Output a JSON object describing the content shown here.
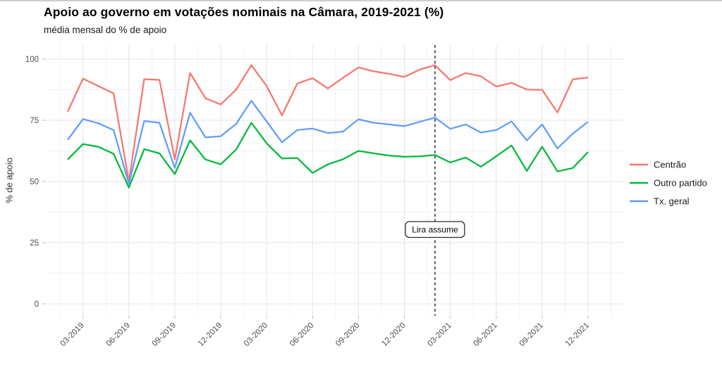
{
  "page": {
    "title": "Apoio ao governo em votações nominais na Câmara, 2019-2021 (%)",
    "subtitle": "média mensal do % de apoio"
  },
  "chart_data": {
    "type": "line",
    "title": "Apoio ao governo em votações nominais na Câmara, 2019-2021 (%)",
    "subtitle": "média mensal do % de apoio",
    "xlabel": "",
    "ylabel": "% de apoio",
    "grid": true,
    "legend_position": "right",
    "ylim": [
      0,
      100
    ],
    "y_ticks": [
      0,
      25,
      50,
      75,
      100
    ],
    "x_tick_labels": [
      "03-2019",
      "06-2019",
      "09-2019",
      "12-2019",
      "03-2020",
      "06-2020",
      "09-2020",
      "12-2020",
      "03-2021",
      "06-2021",
      "09-2021",
      "12-2021"
    ],
    "x": [
      "02-2019",
      "03-2019",
      "04-2019",
      "05-2019",
      "06-2019",
      "07-2019",
      "08-2019",
      "09-2019",
      "10-2019",
      "11-2019",
      "12-2019",
      "01-2020",
      "02-2020",
      "03-2020",
      "04-2020",
      "05-2020",
      "06-2020",
      "07-2020",
      "08-2020",
      "09-2020",
      "10-2020",
      "11-2020",
      "12-2020",
      "01-2021",
      "02-2021",
      "03-2021",
      "04-2021",
      "05-2021",
      "06-2021",
      "07-2021",
      "08-2021",
      "09-2021",
      "10-2021",
      "11-2021",
      "12-2021"
    ],
    "series": [
      {
        "name": "Centrão",
        "color": "#F8766D",
        "values": [
          78.5,
          92,
          89,
          86,
          50,
          91.8,
          91.5,
          59,
          94.3,
          84,
          81.5,
          87.5,
          97.5,
          89,
          77,
          90,
          92.2,
          88,
          92.4,
          96.6,
          95,
          94,
          92.7,
          95.7,
          97.5,
          91.4,
          94.3,
          93,
          88.8,
          90.3,
          87.6,
          87.4,
          78.2,
          91.7,
          92.5
        ]
      },
      {
        "name": "Outro partido",
        "color": "#00BA38",
        "values": [
          59,
          65.3,
          64.2,
          61.3,
          47.5,
          63.2,
          61.5,
          53,
          66.8,
          59,
          57,
          63,
          74,
          65.6,
          59.4,
          59.6,
          53.5,
          57,
          59.1,
          62.5,
          61.5,
          60.6,
          60.1,
          60.3,
          60.8,
          57.8,
          59.8,
          56,
          60.3,
          64.7,
          54.3,
          64.2,
          54.1,
          55.5,
          62
        ]
      },
      {
        "name": "Tx. geral",
        "color": "#619CFF",
        "values": [
          67,
          75.5,
          73.8,
          71,
          49,
          74.7,
          74,
          55.5,
          78.1,
          68,
          68.5,
          73.5,
          83,
          74.5,
          66,
          71,
          71.6,
          69.8,
          70.4,
          75.4,
          74,
          73.3,
          72.6,
          74.4,
          76.1,
          71.5,
          73.3,
          70,
          71,
          74.5,
          66.8,
          73.3,
          63.5,
          69.5,
          74.4
        ]
      }
    ],
    "vline": {
      "x": "02-2021",
      "label": "Lira assume",
      "style": "dashed",
      "color": "#3c3c3c"
    }
  },
  "colors": {
    "grid_major": "#e4e4e4",
    "grid_minor": "#f1f1f1",
    "tick_mark": "#bdbdbd",
    "annotation_border": "#2b2b2b"
  }
}
